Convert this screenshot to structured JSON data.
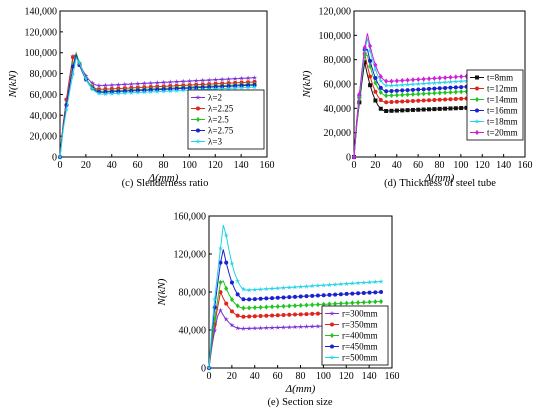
{
  "panels": [
    {
      "id": "c",
      "caption_letter": "(c)",
      "caption_text": "Slenderness ratio",
      "ylabel": "N(kN)",
      "xlabel": "Δ(mm)",
      "xlim": [
        0,
        160
      ],
      "ylim": [
        0,
        140000
      ],
      "xticks": [
        "0",
        "20",
        "40",
        "60",
        "80",
        "100",
        "120",
        "140",
        "160"
      ],
      "yticks": [
        "0",
        "20,000",
        "40,000",
        "60,000",
        "80,000",
        "100,000",
        "120,000",
        "140,000"
      ],
      "legend_placement": "lower-right",
      "series": [
        {
          "name": "λ=2",
          "color": "#7b2fd6",
          "marker": "star",
          "peak_x": 11,
          "peak_y": 104000,
          "end_y": 76000
        },
        {
          "name": "λ=2.25",
          "color": "#e0241c",
          "marker": "circle",
          "peak_x": 11,
          "peak_y": 103000,
          "end_y": 72000
        },
        {
          "name": "λ=2.5",
          "color": "#1fc41f",
          "marker": "diamond",
          "peak_x": 12,
          "peak_y": 102000,
          "end_y": 70000
        },
        {
          "name": "λ=2.75",
          "color": "#1a22d0",
          "marker": "circle",
          "peak_x": 12,
          "peak_y": 100000,
          "end_y": 69000
        },
        {
          "name": "λ=3",
          "color": "#22d4e6",
          "marker": "star",
          "peak_x": 13,
          "peak_y": 98000,
          "end_y": 67000
        }
      ]
    },
    {
      "id": "d",
      "caption_letter": "(d)",
      "caption_text": "Thickness of steel tube",
      "ylabel": "N(kN)",
      "xlabel": "Δ(mm)",
      "xlim": [
        0,
        160
      ],
      "ylim": [
        0,
        120000
      ],
      "xticks": [
        "0",
        "20",
        "40",
        "60",
        "80",
        "100",
        "120",
        "140",
        "160"
      ],
      "yticks": [
        "0",
        "20,000",
        "40,000",
        "60,000",
        "80,000",
        "100,000",
        "120,000"
      ],
      "legend_placement": "right",
      "series": [
        {
          "name": "t=8mm",
          "color": "#111111",
          "marker": "square",
          "peak_x": 10,
          "peak_y": 78000,
          "end_y": 42000
        },
        {
          "name": "t=12mm",
          "color": "#e0241c",
          "marker": "circle",
          "peak_x": 10,
          "peak_y": 85000,
          "end_y": 50000
        },
        {
          "name": "t=14mm",
          "color": "#1fc41f",
          "marker": "diamond",
          "peak_x": 11,
          "peak_y": 90000,
          "end_y": 56000
        },
        {
          "name": "t=16mm",
          "color": "#1a22d0",
          "marker": "circle",
          "peak_x": 11,
          "peak_y": 95000,
          "end_y": 60000
        },
        {
          "name": "t=18mm",
          "color": "#22d4e6",
          "marker": "star",
          "peak_x": 12,
          "peak_y": 100000,
          "end_y": 65000
        },
        {
          "name": "t=20mm",
          "color": "#d11ed8",
          "marker": "diamond",
          "peak_x": 12,
          "peak_y": 104000,
          "end_y": 69000
        }
      ]
    },
    {
      "id": "e",
      "caption_letter": "(e)",
      "caption_text": "Section size",
      "ylabel": "N(kN)",
      "xlabel": "Δ(mm)",
      "xlim": [
        0,
        160
      ],
      "ylim": [
        0,
        160000
      ],
      "xticks": [
        "0",
        "20",
        "40",
        "60",
        "80",
        "100",
        "120",
        "140",
        "160"
      ],
      "yticks": [
        "0",
        "40,000",
        "80,000",
        "120,000",
        "160,000"
      ],
      "legend_placement": "lower-right",
      "series": [
        {
          "name": "r=300mm",
          "color": "#7b2fd6",
          "marker": "star",
          "peak_x": 9,
          "peak_y": 63000,
          "end_y": 46000
        },
        {
          "name": "r=350mm",
          "color": "#e0241c",
          "marker": "circle",
          "peak_x": 10,
          "peak_y": 80000,
          "end_y": 60000
        },
        {
          "name": "r=400mm",
          "color": "#1fc41f",
          "marker": "diamond",
          "peak_x": 11,
          "peak_y": 97000,
          "end_y": 70000
        },
        {
          "name": "r=450mm",
          "color": "#1a22d0",
          "marker": "circle",
          "peak_x": 12,
          "peak_y": 128000,
          "end_y": 80000
        },
        {
          "name": "r=500mm",
          "color": "#22d4e6",
          "marker": "star",
          "peak_x": 13,
          "peak_y": 155000,
          "end_y": 91000
        }
      ]
    }
  ],
  "chart_data": [
    {
      "type": "line",
      "panel": "c",
      "xlabel": "Δ(mm)",
      "ylabel": "N(kN)",
      "xlim": [
        0,
        160
      ],
      "ylim": [
        0,
        140000
      ]
    },
    {
      "type": "line",
      "panel": "d",
      "xlabel": "Δ(mm)",
      "ylabel": "N(kN)",
      "xlim": [
        0,
        160
      ],
      "ylim": [
        0,
        120000
      ]
    },
    {
      "type": "line",
      "panel": "e",
      "xlabel": "Δ(mm)",
      "ylabel": "N(kN)",
      "xlim": [
        0,
        160
      ],
      "ylim": [
        0,
        160000
      ]
    }
  ]
}
